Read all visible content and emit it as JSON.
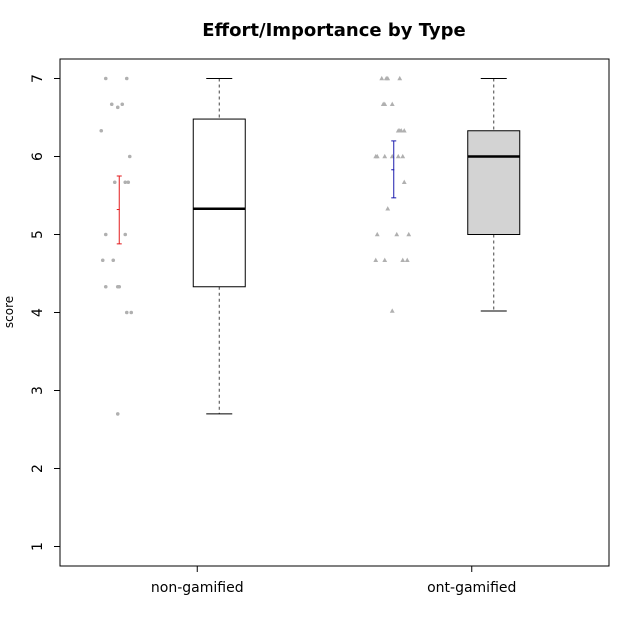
{
  "chart_data": {
    "type": "box",
    "title": "Effort/Importance by Type",
    "xlabel": "",
    "ylabel": "score",
    "ylim": [
      0.75,
      7.25
    ],
    "yticks": [
      1,
      2,
      3,
      4,
      5,
      6,
      7
    ],
    "categories": [
      "non-gamified",
      "ont-gamified"
    ],
    "boxes": [
      {
        "category": "non-gamified",
        "fill": "#ffffff",
        "min": 2.7,
        "q1": 4.33,
        "median": 5.33,
        "q3": 6.48,
        "max": 7.0,
        "mean": 5.32,
        "ci_low": 4.88,
        "ci_high": 5.75,
        "ci_color": "#e31a1c",
        "point_shape": "circle",
        "points": [
          {
            "x": -0.09,
            "y": 7.0
          },
          {
            "x": 0.05,
            "y": 7.0
          },
          {
            "x": -0.05,
            "y": 6.67
          },
          {
            "x": -0.01,
            "y": 6.63
          },
          {
            "x": 0.02,
            "y": 6.67
          },
          {
            "x": -0.12,
            "y": 6.33
          },
          {
            "x": 0.07,
            "y": 6.0
          },
          {
            "x": -0.03,
            "y": 5.67
          },
          {
            "x": 0.04,
            "y": 5.67
          },
          {
            "x": 0.06,
            "y": 5.67
          },
          {
            "x": -0.09,
            "y": 5.0
          },
          {
            "x": 0.04,
            "y": 5.0
          },
          {
            "x": -0.11,
            "y": 4.67
          },
          {
            "x": -0.04,
            "y": 4.67
          },
          {
            "x": -0.09,
            "y": 4.33
          },
          {
            "x": -0.01,
            "y": 4.33
          },
          {
            "x": 0.0,
            "y": 4.33
          },
          {
            "x": 0.05,
            "y": 4.0
          },
          {
            "x": 0.08,
            "y": 4.0
          },
          {
            "x": -0.01,
            "y": 2.7
          }
        ]
      },
      {
        "category": "ont-gamified",
        "fill": "#d3d3d3",
        "min": 4.02,
        "q1": 5.0,
        "median": 6.0,
        "q3": 6.33,
        "max": 7.0,
        "mean": 5.83,
        "ci_low": 5.47,
        "ci_high": 6.2,
        "ci_color": "#1a1aad",
        "point_shape": "triangle",
        "points": [
          {
            "x": -0.08,
            "y": 7.0
          },
          {
            "x": -0.05,
            "y": 7.0
          },
          {
            "x": -0.04,
            "y": 7.0
          },
          {
            "x": 0.04,
            "y": 7.0
          },
          {
            "x": -0.07,
            "y": 6.67
          },
          {
            "x": -0.06,
            "y": 6.67
          },
          {
            "x": -0.01,
            "y": 6.67
          },
          {
            "x": 0.03,
            "y": 6.33
          },
          {
            "x": 0.04,
            "y": 6.33
          },
          {
            "x": 0.05,
            "y": 6.33
          },
          {
            "x": 0.07,
            "y": 6.33
          },
          {
            "x": -0.12,
            "y": 6.0
          },
          {
            "x": -0.11,
            "y": 6.0
          },
          {
            "x": -0.06,
            "y": 6.0
          },
          {
            "x": -0.01,
            "y": 6.0
          },
          {
            "x": 0.03,
            "y": 6.0
          },
          {
            "x": 0.06,
            "y": 6.0
          },
          {
            "x": 0.07,
            "y": 5.67
          },
          {
            "x": -0.04,
            "y": 5.33
          },
          {
            "x": -0.11,
            "y": 5.0
          },
          {
            "x": 0.02,
            "y": 5.0
          },
          {
            "x": 0.1,
            "y": 5.0
          },
          {
            "x": -0.12,
            "y": 4.67
          },
          {
            "x": -0.06,
            "y": 4.67
          },
          {
            "x": 0.06,
            "y": 4.67
          },
          {
            "x": 0.09,
            "y": 4.67
          },
          {
            "x": -0.01,
            "y": 4.02
          }
        ]
      }
    ],
    "grid": false,
    "legend": "none"
  }
}
